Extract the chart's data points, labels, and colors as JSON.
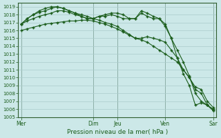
{
  "title": "Pression niveau de la mer( hPa )",
  "bg_color": "#cce8e8",
  "grid_major_color": "#aacccc",
  "grid_minor_color": "#bbdddd",
  "line_color": "#1a5c1a",
  "ylim": [
    1005,
    1019.5
  ],
  "yticks": [
    1005,
    1006,
    1007,
    1008,
    1009,
    1010,
    1011,
    1012,
    1013,
    1014,
    1015,
    1016,
    1017,
    1018,
    1019
  ],
  "day_labels": [
    "Mer",
    "Dim",
    "Jeu",
    "Ven",
    "Sar"
  ],
  "day_x": [
    0,
    12,
    16,
    24,
    32
  ],
  "n_points": 33,
  "series": [
    [
      1016.0,
      1016.2,
      1016.4,
      1016.6,
      1016.8,
      1016.9,
      1017.0,
      1017.1,
      1017.2,
      1017.2,
      1017.3,
      1017.3,
      1017.2,
      1017.0,
      1016.8,
      1016.5,
      1016.2,
      1015.8,
      1015.4,
      1015.0,
      1014.8,
      1014.5,
      1014.0,
      1013.5,
      1013.0,
      1012.5,
      1012.0,
      1011.0,
      1010.0,
      1008.5,
      1008.0,
      1006.5,
      1005.8
    ],
    [
      1016.8,
      1017.2,
      1017.5,
      1017.8,
      1018.0,
      1018.2,
      1018.5,
      1018.5,
      1018.3,
      1018.0,
      1017.8,
      1017.5,
      1017.5,
      1017.3,
      1017.0,
      1016.8,
      1016.5,
      1016.0,
      1015.5,
      1015.0,
      1015.0,
      1015.2,
      1015.0,
      1014.8,
      1014.5,
      1013.5,
      1012.5,
      1011.0,
      1010.0,
      1008.8,
      1008.5,
      1007.0,
      1006.2
    ],
    [
      1016.8,
      1017.5,
      1018.0,
      1018.5,
      1018.8,
      1019.0,
      1019.0,
      1018.8,
      1018.5,
      1018.2,
      1018.0,
      1017.8,
      1017.5,
      1017.8,
      1018.0,
      1018.2,
      1018.2,
      1018.0,
      1017.5,
      1017.5,
      1018.5,
      1018.2,
      1017.8,
      1017.5,
      1016.5,
      1015.0,
      1013.5,
      1012.0,
      1010.2,
      1008.0,
      1007.0,
      1006.5,
      1006.0
    ],
    [
      1016.8,
      1017.5,
      1018.0,
      1018.3,
      1018.5,
      1018.8,
      1019.0,
      1018.8,
      1018.5,
      1018.2,
      1017.8,
      1017.5,
      1017.5,
      1017.8,
      1017.8,
      1018.0,
      1017.8,
      1017.5,
      1017.5,
      1017.5,
      1018.2,
      1017.8,
      1017.5,
      1017.5,
      1016.8,
      1015.0,
      1012.5,
      1010.5,
      1009.0,
      1006.5,
      1006.8,
      1006.5,
      1005.8
    ]
  ]
}
